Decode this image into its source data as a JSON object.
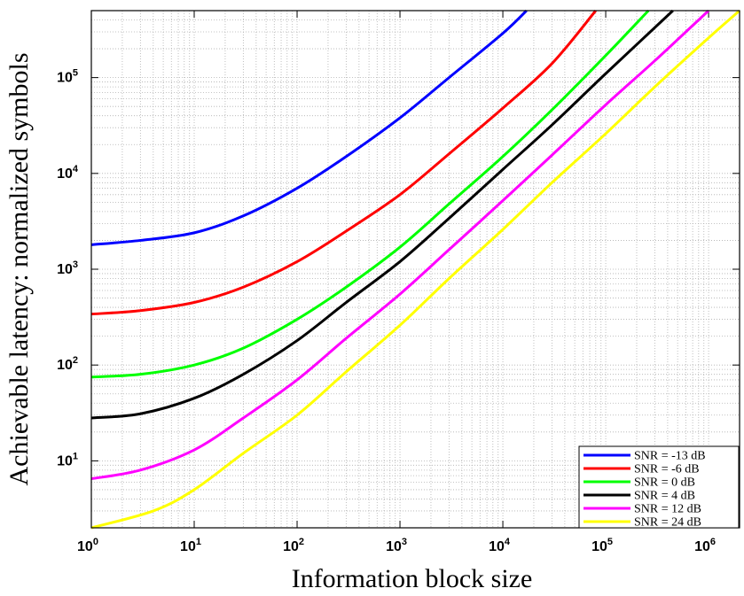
{
  "chart_data": {
    "type": "line",
    "title": "",
    "xlabel": "Information block size",
    "ylabel": "Achievable latency: normalized symbols",
    "x_scale": "log",
    "y_scale": "log",
    "xlim": [
      1,
      2000000
    ],
    "ylim": [
      2,
      500000
    ],
    "x_ticks": [
      {
        "base": "10",
        "exp": "0",
        "value": 1
      },
      {
        "base": "10",
        "exp": "1",
        "value": 10
      },
      {
        "base": "10",
        "exp": "2",
        "value": 100
      },
      {
        "base": "10",
        "exp": "3",
        "value": 1000
      },
      {
        "base": "10",
        "exp": "4",
        "value": 10000
      },
      {
        "base": "10",
        "exp": "5",
        "value": 100000
      },
      {
        "base": "10",
        "exp": "6",
        "value": 1000000
      }
    ],
    "y_ticks": [
      {
        "base": "10",
        "exp": "1",
        "value": 10
      },
      {
        "base": "10",
        "exp": "2",
        "value": 100
      },
      {
        "base": "10",
        "exp": "3",
        "value": 1000
      },
      {
        "base": "10",
        "exp": "4",
        "value": 10000
      },
      {
        "base": "10",
        "exp": "5",
        "value": 100000
      }
    ],
    "grid": true,
    "legend_position": "bottom-right",
    "series": [
      {
        "name": "SNR = -13 dB",
        "color": "#0000ff",
        "x": [
          1,
          3,
          10,
          30,
          100,
          300,
          1000,
          3000,
          10000,
          17000
        ],
        "y": [
          1800,
          2000,
          2400,
          3600,
          7000,
          15000,
          38000,
          100000,
          290000,
          500000
        ]
      },
      {
        "name": "SNR = -6 dB",
        "color": "#ff0000",
        "x": [
          1,
          3,
          10,
          30,
          100,
          300,
          1000,
          3000,
          10000,
          30000,
          80000
        ],
        "y": [
          340,
          370,
          450,
          650,
          1200,
          2500,
          6000,
          16000,
          48000,
          140000,
          500000
        ]
      },
      {
        "name": "SNR = 0 dB",
        "color": "#00ff00",
        "x": [
          1,
          3,
          10,
          30,
          100,
          300,
          1000,
          3000,
          10000,
          30000,
          100000,
          260000
        ],
        "y": [
          75,
          80,
          100,
          150,
          300,
          650,
          1700,
          4800,
          15000,
          46000,
          170000,
          500000
        ]
      },
      {
        "name": "SNR = 4 dB",
        "color": "#000000",
        "x": [
          1,
          3,
          10,
          30,
          100,
          300,
          1000,
          3000,
          10000,
          30000,
          100000,
          450000
        ],
        "y": [
          28,
          31,
          45,
          80,
          180,
          450,
          1200,
          3400,
          11000,
          32000,
          110000,
          500000
        ]
      },
      {
        "name": "SNR = 12 dB",
        "color": "#ff00ff",
        "x": [
          1,
          3,
          10,
          30,
          100,
          300,
          1000,
          3000,
          10000,
          30000,
          100000,
          300000,
          1000000
        ],
        "y": [
          6.5,
          8,
          13,
          28,
          70,
          190,
          550,
          1600,
          5200,
          15500,
          52000,
          150000,
          500000
        ]
      },
      {
        "name": "SNR = 24 dB",
        "color": "#ffff00",
        "x": [
          1,
          4,
          10,
          30,
          100,
          300,
          1000,
          3000,
          10000,
          30000,
          100000,
          300000,
          1000000,
          2000000
        ],
        "y": [
          2,
          3,
          5,
          12,
          30,
          85,
          260,
          800,
          2600,
          8000,
          26000,
          80000,
          260000,
          500000
        ]
      }
    ]
  }
}
